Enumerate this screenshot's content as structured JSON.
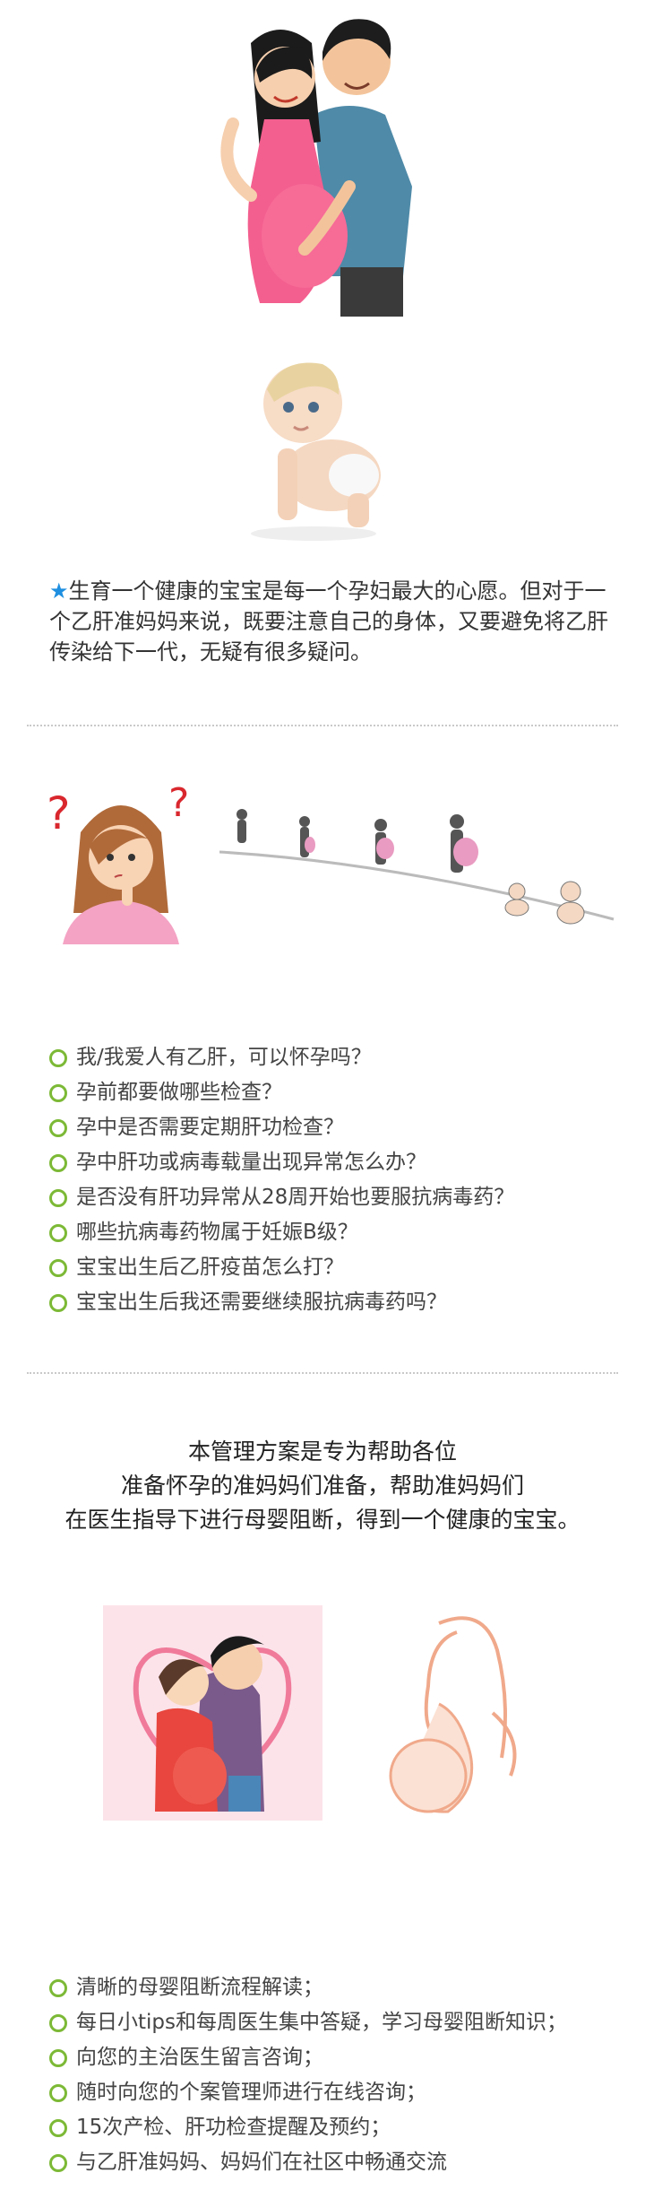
{
  "intro": {
    "star": "★",
    "text": "生育一个健康的宝宝是每一个孕妇最大的心愿。但对于一个乙肝准妈妈来说，既要注意自己的身体，又要避免将乙肝传染给下一代，无疑有很多疑问。"
  },
  "questions": [
    "我/我爱人有乙肝，可以怀孕吗？",
    "孕前都要做哪些检查？",
    "孕中是否需要定期肝功检查？",
    "孕中肝功或病毒载量出现异常怎么办？",
    "是否没有肝功异常从28周开始也要服抗病毒药？",
    "哪些抗病毒药物属于妊娠B级？",
    "宝宝出生后乙肝疫苗怎么打？",
    "宝宝出生后我还需要继续服抗病毒药吗？"
  ],
  "plan": {
    "line1": "本管理方案是专为帮助各位",
    "line2": "准备怀孕的准妈妈们准备，帮助准妈妈们",
    "line3": "在医生指导下进行母婴阻断，得到一个健康的宝宝。"
  },
  "benefits": [
    "清晰的母婴阻断流程解读；",
    "每日小tips和每周医生集中答疑，学习母婴阻断知识；",
    "向您的主治医生留言咨询；",
    "随时向您的个案管理师进行在线咨询；",
    "15次产检、肝功检查提醒及预约；",
    "与乙肝准妈妈、妈妈们在社区中畅通交流"
  ],
  "colors": {
    "accent_green": "#7cb936",
    "star_blue": "#1e8fe0",
    "divider": "#c9c9c9"
  },
  "illustrations": {
    "couple": "pregnant-couple-illustration",
    "baby": "crawling-baby-photo",
    "thinking_woman": "thinking-woman-illustration",
    "pregnancy_stages": "pregnancy-stages-illustration",
    "embracing_couple": "embracing-couple-illustration",
    "silhouette": "pregnant-silhouette-illustration"
  }
}
